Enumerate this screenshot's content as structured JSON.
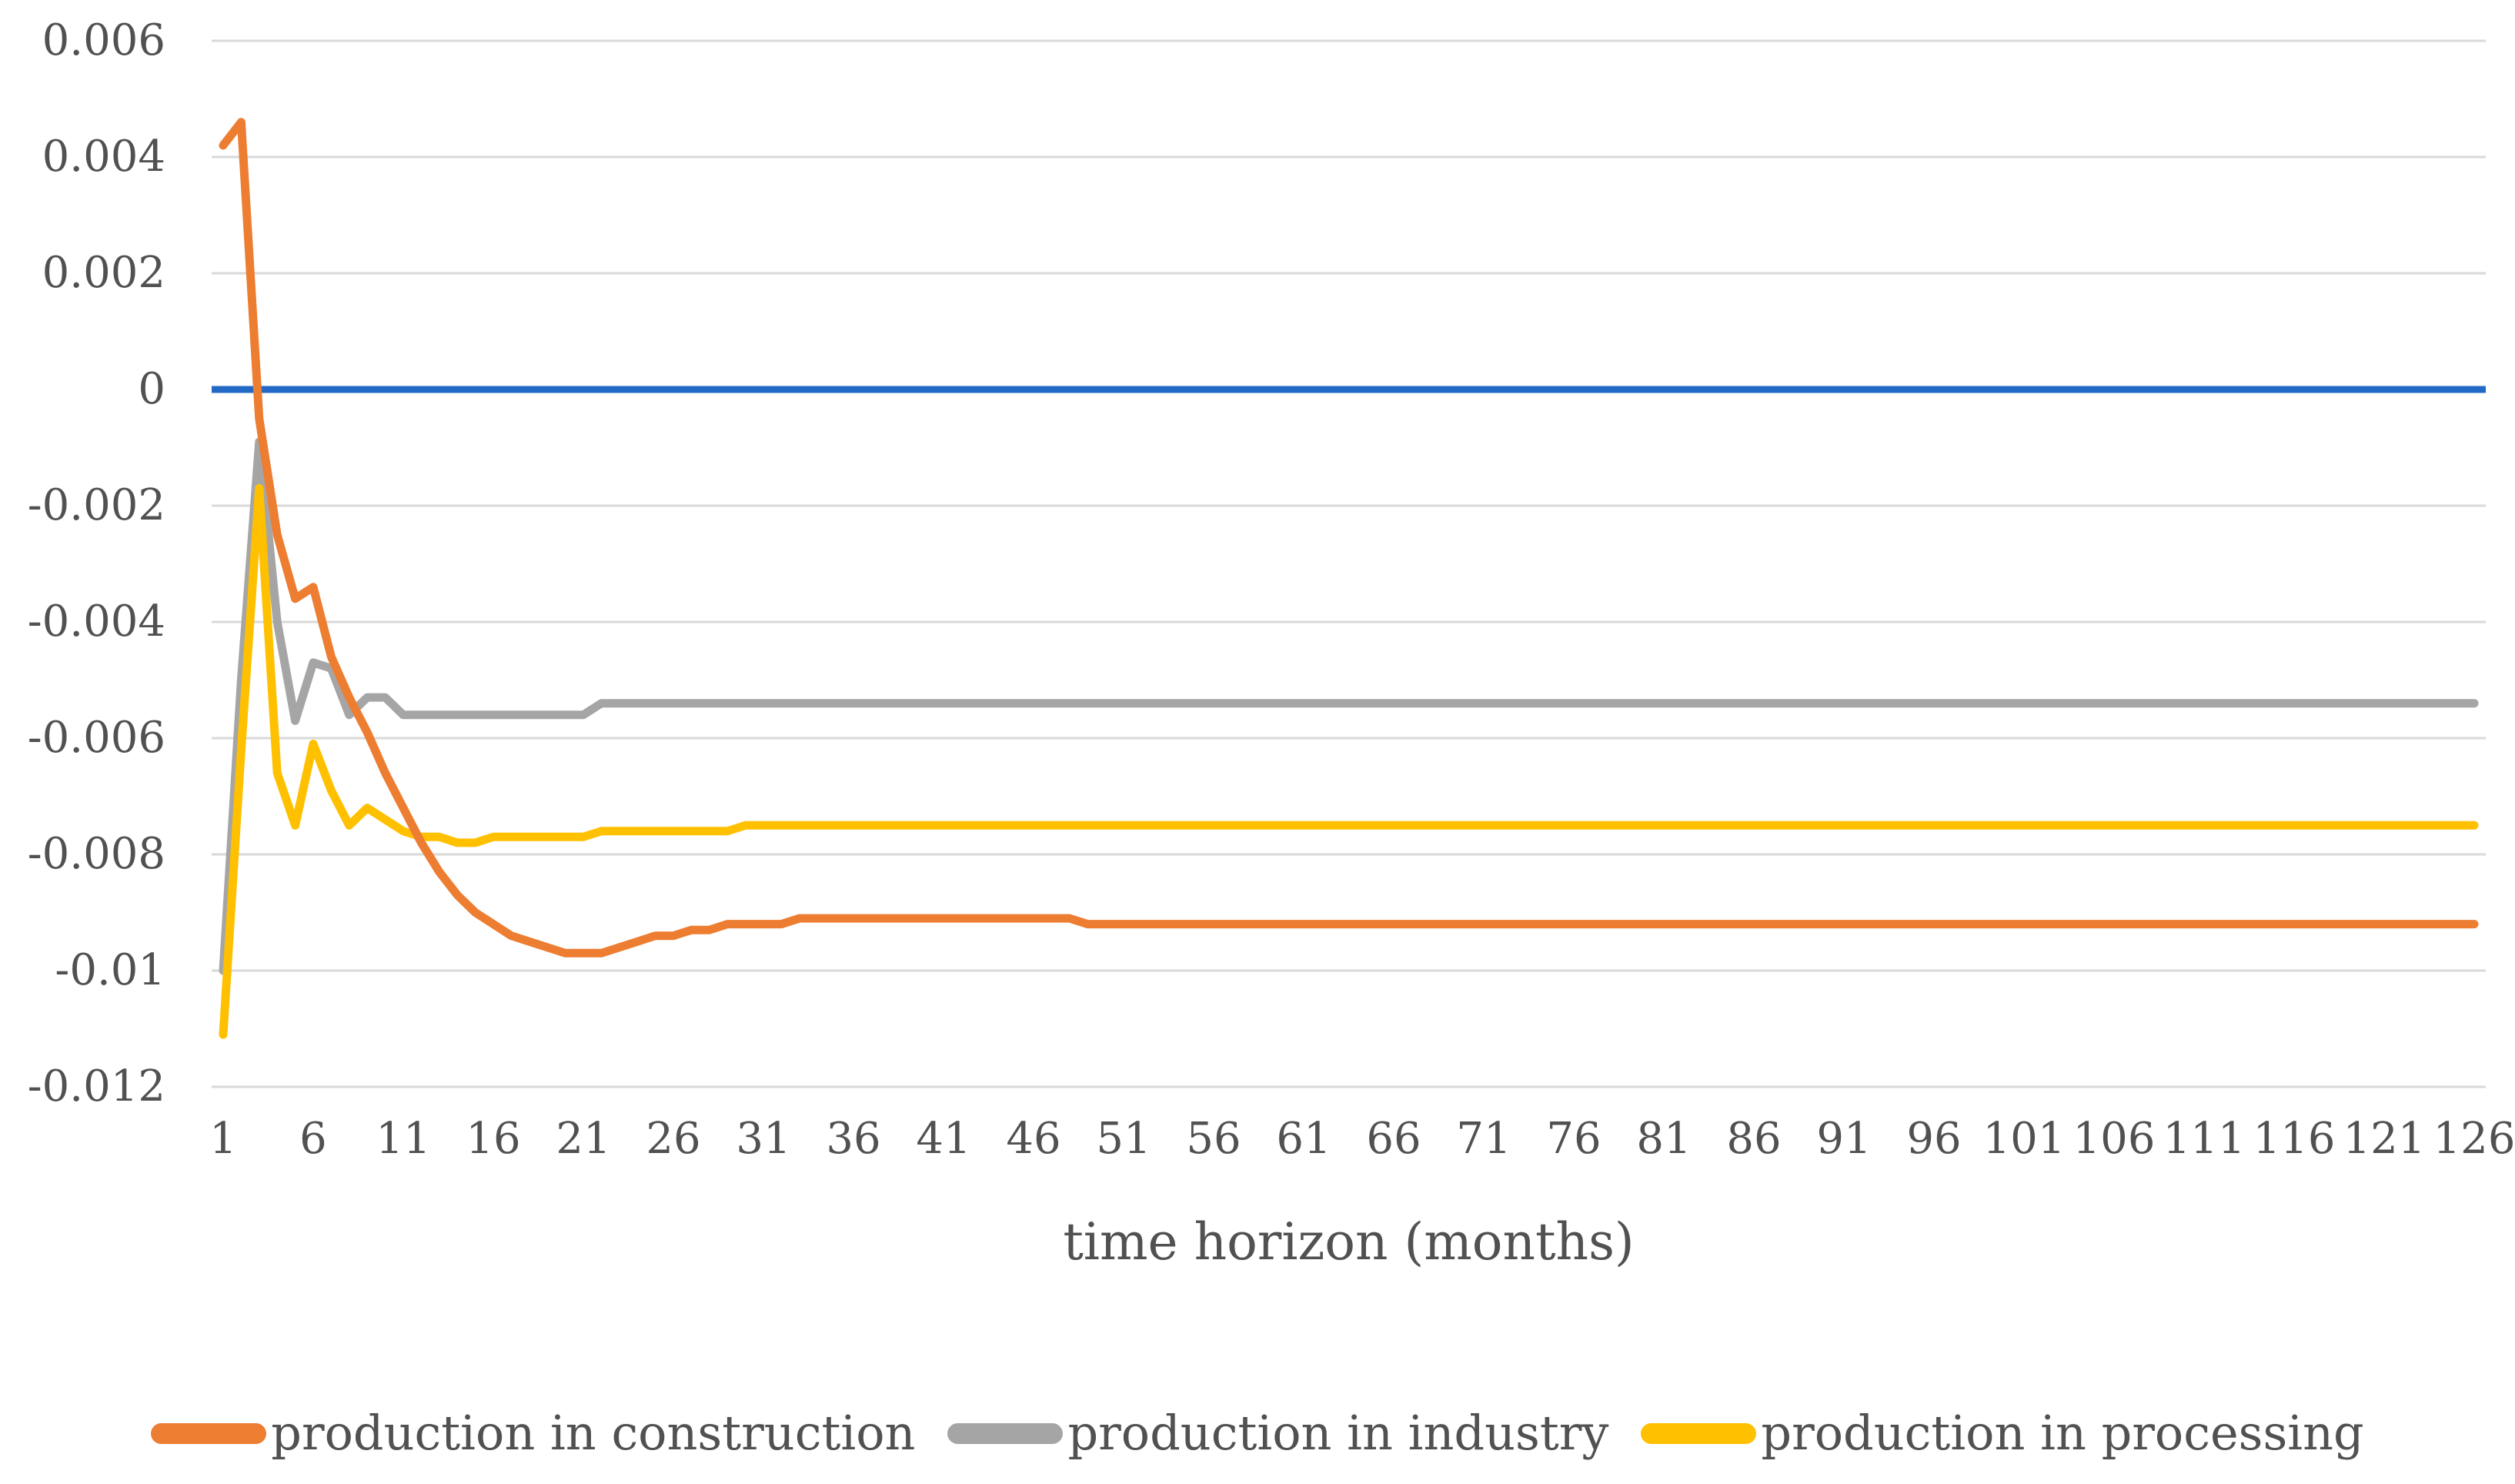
{
  "chart_data": {
    "type": "line",
    "title": "",
    "xlabel": "time horizon (months)",
    "ylabel": "",
    "xlim": [
      1,
      126
    ],
    "ylim": [
      -0.012,
      0.006
    ],
    "grid": "horizontal-only",
    "gridline_color": "#D9D9D9",
    "x_ticks": [
      1,
      6,
      11,
      16,
      21,
      26,
      31,
      36,
      41,
      46,
      51,
      56,
      61,
      66,
      71,
      76,
      81,
      86,
      91,
      96,
      101,
      106,
      111,
      116,
      121,
      126
    ],
    "y_ticks": [
      0.006,
      0.004,
      0.002,
      0,
      -0.002,
      -0.004,
      -0.006,
      -0.008,
      -0.01,
      -0.012
    ],
    "y_tick_labels": [
      "0.006",
      "0.004",
      "0.002",
      "0",
      "-0.002",
      "-0.004",
      "-0.006",
      "-0.008",
      "-0.01",
      "-0.012"
    ],
    "zero_line": {
      "value": 0,
      "color": "#2268C5"
    },
    "legend_position": "bottom",
    "series": [
      {
        "name": "production in industry",
        "color": "#A5A5A5",
        "points": [
          [
            1,
            -0.01
          ],
          [
            2,
            -0.005
          ],
          [
            3,
            -0.0009
          ],
          [
            4,
            -0.004
          ],
          [
            5,
            -0.0057
          ],
          [
            6,
            -0.0047
          ],
          [
            7,
            -0.0048
          ],
          [
            8,
            -0.0056
          ],
          [
            9,
            -0.0053
          ],
          [
            10,
            -0.0053
          ],
          [
            11,
            -0.0056
          ],
          [
            12,
            -0.0056
          ],
          [
            21,
            -0.0056
          ],
          [
            22,
            -0.0054
          ],
          [
            126,
            -0.0054
          ]
        ]
      },
      {
        "name": "production in processing",
        "color": "#FFC000",
        "points": [
          [
            1,
            -0.0111
          ],
          [
            2,
            -0.0062
          ],
          [
            3,
            -0.0017
          ],
          [
            4,
            -0.0066
          ],
          [
            5,
            -0.0075
          ],
          [
            6,
            -0.0061
          ],
          [
            7,
            -0.0069
          ],
          [
            8,
            -0.0075
          ],
          [
            9,
            -0.0072
          ],
          [
            10,
            -0.0074
          ],
          [
            11,
            -0.0076
          ],
          [
            12,
            -0.0077
          ],
          [
            13,
            -0.0077
          ],
          [
            14,
            -0.0078
          ],
          [
            15,
            -0.0078
          ],
          [
            16,
            -0.0077
          ],
          [
            21,
            -0.0077
          ],
          [
            22,
            -0.0076
          ],
          [
            29,
            -0.0076
          ],
          [
            30,
            -0.0075
          ],
          [
            126,
            -0.0075
          ]
        ]
      },
      {
        "name": "production in construction",
        "color": "#ED7D31",
        "points": [
          [
            1,
            0.0042
          ],
          [
            2,
            0.0046
          ],
          [
            3,
            -0.0005
          ],
          [
            4,
            -0.0025
          ],
          [
            5,
            -0.0036
          ],
          [
            6,
            -0.0034
          ],
          [
            7,
            -0.0046
          ],
          [
            8,
            -0.0053
          ],
          [
            9,
            -0.0059
          ],
          [
            10,
            -0.0066
          ],
          [
            11,
            -0.0072
          ],
          [
            12,
            -0.0078
          ],
          [
            13,
            -0.0083
          ],
          [
            14,
            -0.0087
          ],
          [
            15,
            -0.009
          ],
          [
            16,
            -0.0092
          ],
          [
            17,
            -0.0094
          ],
          [
            18,
            -0.0095
          ],
          [
            19,
            -0.0096
          ],
          [
            20,
            -0.0097
          ],
          [
            22,
            -0.0097
          ],
          [
            23,
            -0.0096
          ],
          [
            24,
            -0.0095
          ],
          [
            25,
            -0.0094
          ],
          [
            26,
            -0.0094
          ],
          [
            27,
            -0.0093
          ],
          [
            28,
            -0.0093
          ],
          [
            29,
            -0.0092
          ],
          [
            32,
            -0.0092
          ],
          [
            33,
            -0.0091
          ],
          [
            34,
            -0.0091
          ],
          [
            48,
            -0.0091
          ],
          [
            49,
            -0.0092
          ],
          [
            126,
            -0.0092
          ]
        ]
      }
    ],
    "legend_order": [
      "production in construction",
      "production in industry",
      "production in processing"
    ]
  }
}
